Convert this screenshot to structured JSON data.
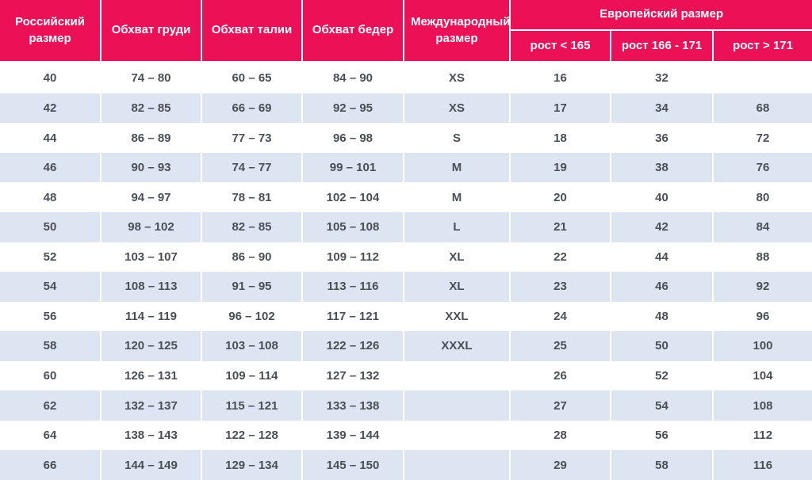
{
  "chart_data": {
    "type": "table",
    "header": {
      "russian_size": "Российский размер",
      "chest": "Обхват груди",
      "waist": "Обхват талии",
      "hips": "Обхват бедер",
      "international_size": "Международный размер",
      "european_size": "Европейский размер",
      "height_under_165": "рост < 165",
      "height_166_171": "рост 166 - 171",
      "height_over_171": "рост > 171"
    },
    "rows": [
      [
        "40",
        "74 – 80",
        "60 – 65",
        "84 – 90",
        "XS",
        "16",
        "32",
        ""
      ],
      [
        "42",
        "82 – 85",
        "66 – 69",
        "92 – 95",
        "XS",
        "17",
        "34",
        "68"
      ],
      [
        "44",
        "86 – 89",
        "77 – 73",
        "96 – 98",
        "S",
        "18",
        "36",
        "72"
      ],
      [
        "46",
        "90 – 93",
        "74 – 77",
        "99 – 101",
        "M",
        "19",
        "38",
        "76"
      ],
      [
        "48",
        "94 – 97",
        "78 – 81",
        "102 – 104",
        "M",
        "20",
        "40",
        "80"
      ],
      [
        "50",
        "98 – 102",
        "82 – 85",
        "105 – 108",
        "L",
        "21",
        "42",
        "84"
      ],
      [
        "52",
        "103 – 107",
        "86 – 90",
        "109 – 112",
        "XL",
        "22",
        "44",
        "88"
      ],
      [
        "54",
        "108 – 113",
        "91 – 95",
        "113 – 116",
        "XL",
        "23",
        "46",
        "92"
      ],
      [
        "56",
        "114 – 119",
        "96 – 102",
        "117 – 121",
        "XXL",
        "24",
        "48",
        "96"
      ],
      [
        "58",
        "120 – 125",
        "103 – 108",
        "122 – 126",
        "XXXL",
        "25",
        "50",
        "100"
      ],
      [
        "60",
        "126 – 131",
        "109 – 114",
        "127 – 132",
        "",
        "26",
        "52",
        "104"
      ],
      [
        "62",
        "132 – 137",
        "115 – 121",
        "133 – 138",
        "",
        "27",
        "54",
        "108"
      ],
      [
        "64",
        "138 – 143",
        "122 – 128",
        "139 – 144",
        "",
        "28",
        "56",
        "112"
      ],
      [
        "66",
        "144 – 149",
        "129 – 134",
        "145 – 150",
        "",
        "29",
        "58",
        "116"
      ]
    ]
  },
  "colors": {
    "header_bg": "#ec1157",
    "header_text": "#ffffff",
    "stripe_bg": "#dce5f1",
    "body_text": "#4a4f55"
  }
}
